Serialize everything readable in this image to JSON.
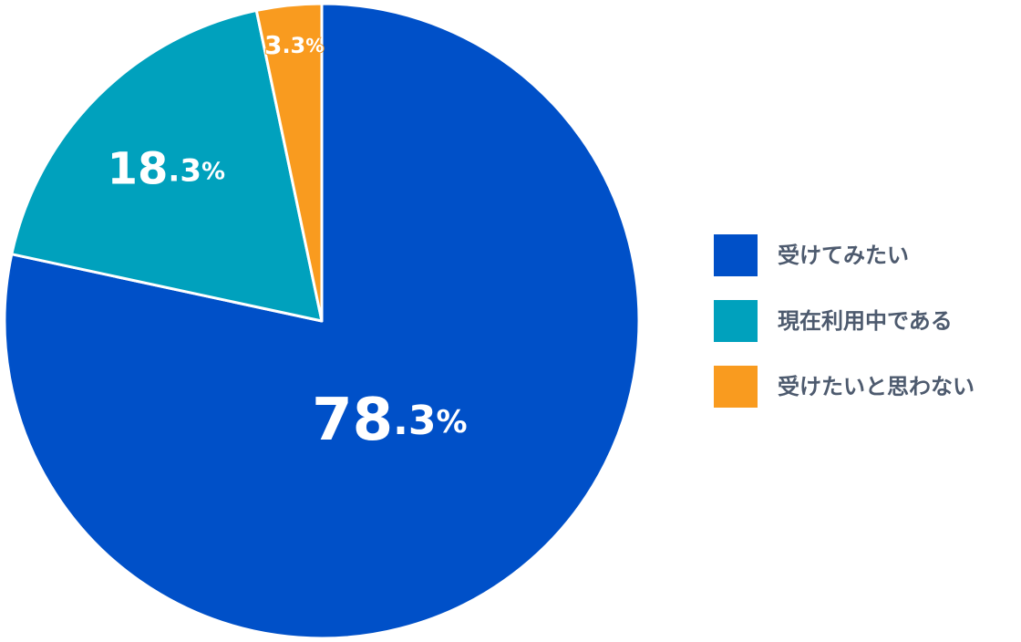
{
  "chart_data": {
    "type": "pie",
    "start_angle_deg": 0,
    "direction": "clockwise",
    "legend_position": "right",
    "series": [
      {
        "name": "",
        "slices": [
          {
            "label": "受けてみたい",
            "value": 78.3,
            "display": "78.3",
            "unit": "%",
            "color": "#0050c8",
            "label_color": "#ffffff"
          },
          {
            "label": "現在利用中である",
            "value": 18.3,
            "display": "18.3",
            "unit": "%",
            "color": "#00a1bd",
            "label_color": "#ffffff"
          },
          {
            "label": "受けたいと思わない",
            "value": 3.3,
            "display": "3.3",
            "unit": "%",
            "color": "#f99b1f",
            "label_color": "#ffffff"
          }
        ]
      }
    ],
    "legend": [
      {
        "label": "受けてみたい",
        "color": "#0050c8"
      },
      {
        "label": "現在利用中である",
        "color": "#00a1bd"
      },
      {
        "label": "受けたいと思わない",
        "color": "#f99b1f"
      }
    ]
  }
}
